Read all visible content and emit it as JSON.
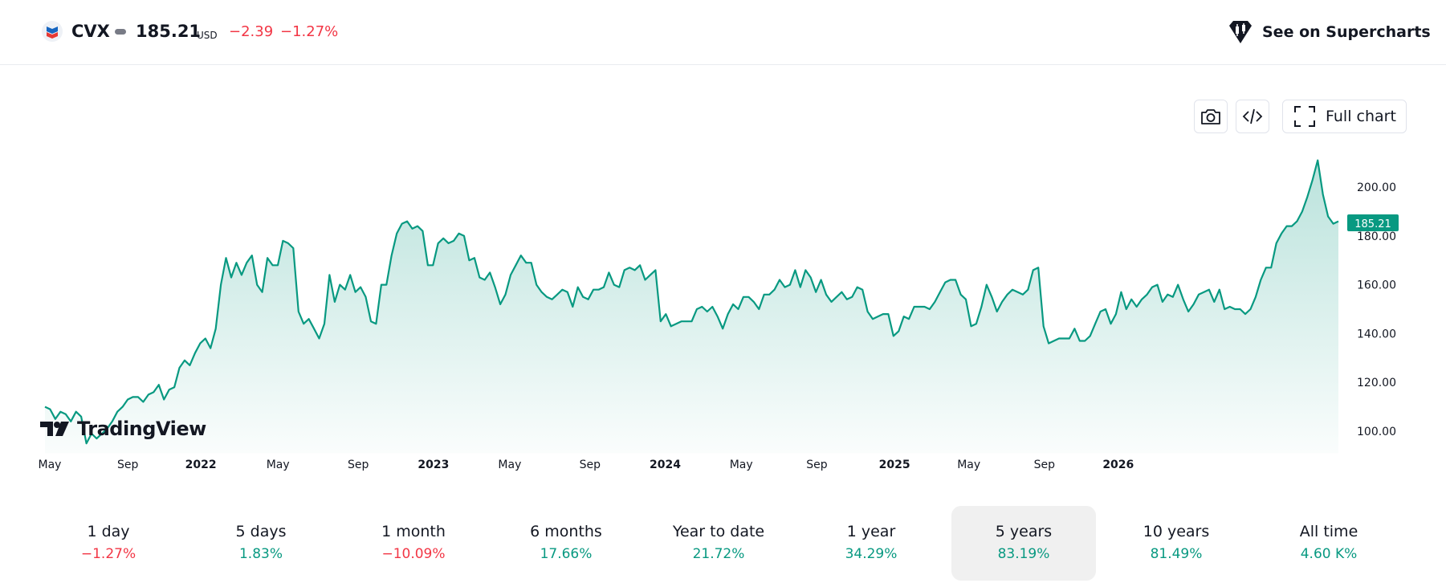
{
  "header": {
    "symbol": "CVX",
    "price": "185.21",
    "currency": "USD",
    "change": "−2.39",
    "change_percent": "−1.27%",
    "supercharts_label": "See on Supercharts"
  },
  "toolbar": {
    "camera_icon": "camera-icon",
    "embed_icon": "code-icon",
    "fullchart_icon": "fullscreen-icon",
    "fullchart_label": "Full chart"
  },
  "brand": {
    "logo_text": "TradingView"
  },
  "colors": {
    "line": "#089981",
    "negative": "#f23645",
    "positive": "#089981",
    "price_tag_bg": "#089981"
  },
  "chart_data": {
    "type": "area",
    "series": [
      {
        "values": [
          110,
          109,
          105,
          108,
          107,
          104,
          108,
          106,
          95,
          99,
          97,
          99,
          101,
          104,
          108,
          110,
          113,
          114,
          114,
          112,
          115,
          116,
          119,
          113,
          117,
          118,
          126,
          129,
          127,
          132,
          136,
          138,
          134,
          142,
          160,
          171,
          163,
          169,
          164,
          169,
          172,
          160,
          157,
          171,
          168,
          168,
          178,
          177,
          175,
          149,
          144,
          146,
          142,
          138,
          144,
          164,
          153,
          160,
          158,
          164,
          157,
          159,
          155,
          145,
          144,
          160,
          160,
          172,
          181,
          185,
          186,
          183,
          184,
          182,
          168,
          168,
          177,
          179,
          177,
          178,
          181,
          180,
          170,
          171,
          163,
          162,
          165,
          159,
          152,
          156,
          164,
          168,
          172,
          169,
          169,
          160,
          157,
          155,
          154,
          156,
          158,
          157,
          151,
          159,
          155,
          154,
          158,
          158,
          159,
          165,
          160,
          159,
          166,
          167,
          166,
          168,
          162,
          164,
          166,
          145,
          148,
          143,
          144,
          145,
          145,
          145,
          150,
          151,
          149,
          151,
          147,
          142,
          148,
          152,
          150,
          155,
          155,
          153,
          150,
          156,
          156,
          158,
          162,
          159,
          160,
          166,
          159,
          166,
          163,
          157,
          162,
          156,
          153,
          155,
          157,
          154,
          155,
          159,
          158,
          149,
          146,
          147,
          148,
          148,
          139,
          141,
          147,
          146,
          151,
          151,
          151,
          150,
          153,
          157,
          161,
          162,
          162,
          156,
          154,
          143,
          144,
          151,
          160,
          155,
          149,
          153,
          156,
          158,
          157,
          156,
          158,
          166,
          167,
          143,
          136,
          137,
          138,
          138,
          138,
          142,
          137,
          137,
          139,
          144,
          149,
          150,
          144,
          148,
          157,
          150,
          154,
          151,
          154,
          156,
          159,
          160,
          153,
          156,
          155,
          160,
          154,
          149,
          152,
          156,
          157,
          158,
          153,
          158,
          150,
          151,
          150,
          150,
          148,
          150,
          155,
          162,
          167,
          167,
          177,
          181,
          184,
          184,
          186,
          190,
          196,
          203,
          211,
          197,
          188,
          185,
          186
        ]
      }
    ],
    "x_ticks": [
      "May",
      "Sep",
      "2022",
      "May",
      "Sep",
      "2023",
      "May",
      "Sep",
      "2024",
      "May",
      "Sep",
      "2025",
      "May",
      "Sep",
      "2026"
    ],
    "y_ticks": [
      "200.00",
      "180.00",
      "160.00",
      "140.00",
      "120.00",
      "100.00"
    ],
    "ylim": [
      92,
      213
    ],
    "last_price_label": "185.21",
    "grid": false
  },
  "ranges": [
    {
      "label": "1 day",
      "value": "−1.27%",
      "sign": "neg",
      "active": false
    },
    {
      "label": "5 days",
      "value": "1.83%",
      "sign": "pos",
      "active": false
    },
    {
      "label": "1 month",
      "value": "−10.09%",
      "sign": "neg",
      "active": false
    },
    {
      "label": "6 months",
      "value": "17.66%",
      "sign": "pos",
      "active": false
    },
    {
      "label": "Year to date",
      "value": "21.72%",
      "sign": "pos",
      "active": false
    },
    {
      "label": "1 year",
      "value": "34.29%",
      "sign": "pos",
      "active": false
    },
    {
      "label": "5 years",
      "value": "83.19%",
      "sign": "pos",
      "active": true
    },
    {
      "label": "10 years",
      "value": "81.49%",
      "sign": "pos",
      "active": false
    },
    {
      "label": "All time",
      "value": "4.60 K%",
      "sign": "pos",
      "active": false
    }
  ]
}
